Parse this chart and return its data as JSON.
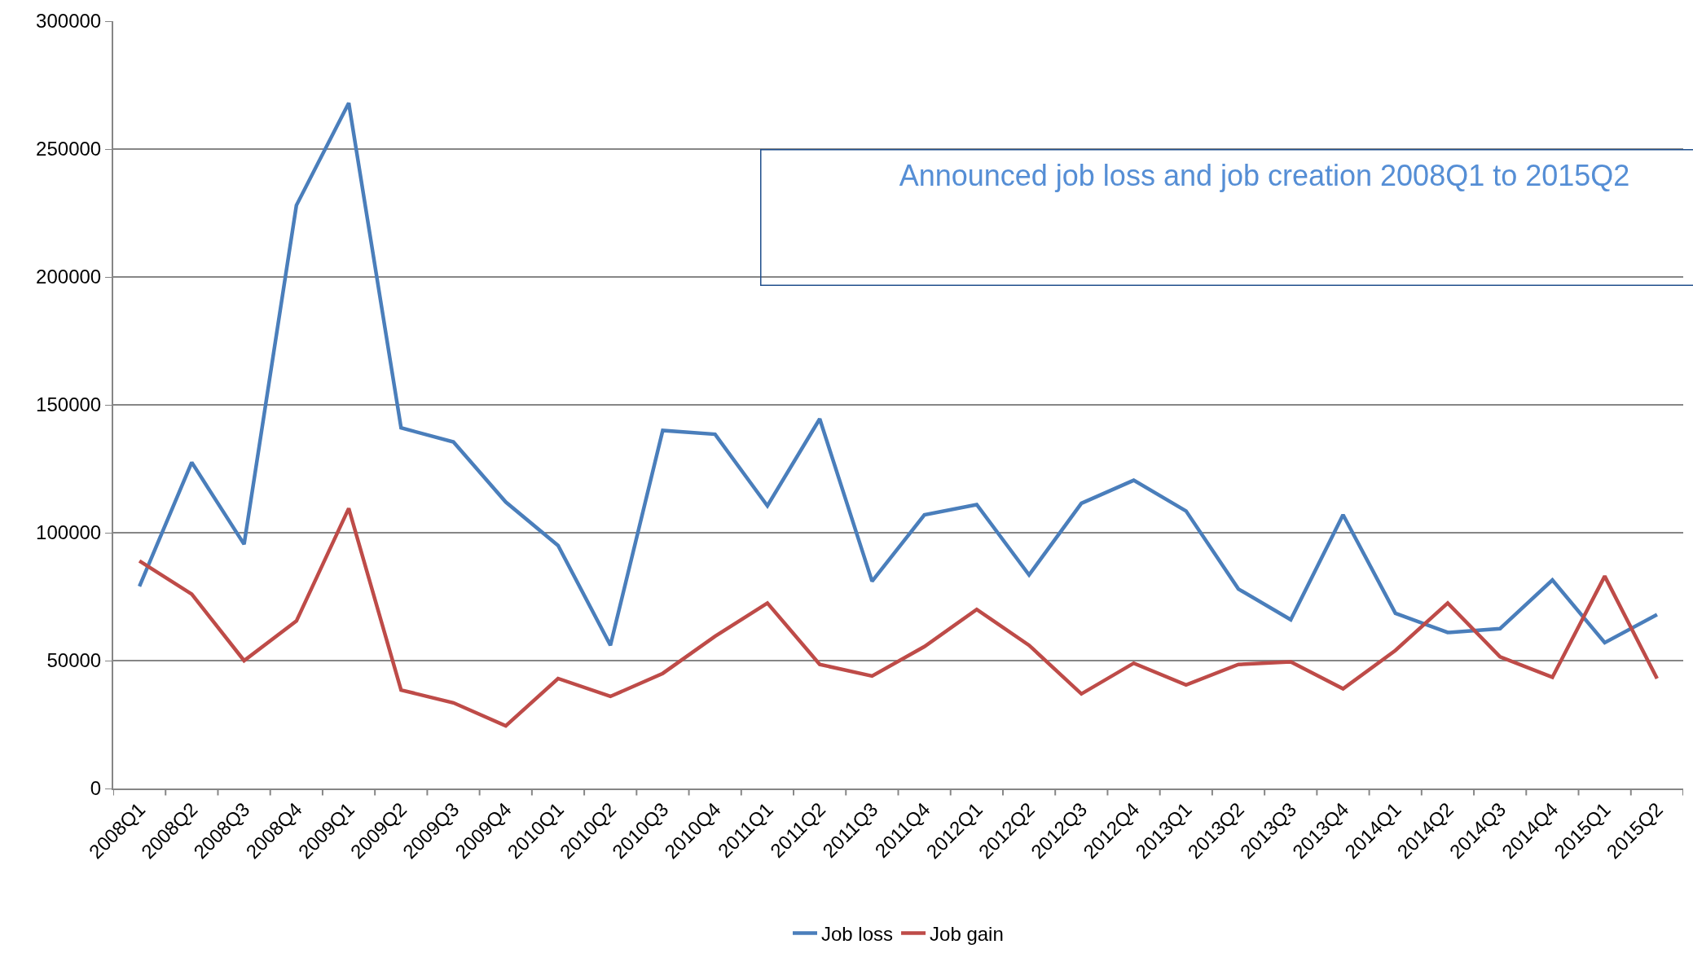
{
  "chart_data": {
    "type": "line",
    "title": "Announced job loss and job creation 2008Q1 to 2015Q2",
    "categories": [
      "2008Q1",
      "2008Q2",
      "2008Q3",
      "2008Q4",
      "2009Q1",
      "2009Q2",
      "2009Q3",
      "2009Q4",
      "2010Q1",
      "2010Q2",
      "2010Q3",
      "2010Q4",
      "2011Q1",
      "2011Q2",
      "2011Q3",
      "2011Q4",
      "2012Q1",
      "2012Q2",
      "2012Q3",
      "2012Q4",
      "2013Q1",
      "2013Q2",
      "2013Q3",
      "2013Q4",
      "2014Q1",
      "2014Q2",
      "2014Q3",
      "2014Q4",
      "2015Q1",
      "2015Q2"
    ],
    "series": [
      {
        "name": "Job loss",
        "color": "#4a7ebb",
        "values": [
          79000,
          127500,
          95500,
          228000,
          268000,
          141000,
          135500,
          112000,
          95000,
          56000,
          140000,
          138500,
          110500,
          144500,
          81000,
          107000,
          111000,
          83500,
          111500,
          120500,
          108500,
          78000,
          66000,
          107000,
          68500,
          61000,
          62500,
          81500,
          57000,
          68000
        ]
      },
      {
        "name": "Job gain",
        "color": "#be4b48",
        "values": [
          89000,
          76000,
          50000,
          65500,
          109500,
          38500,
          33500,
          24500,
          43000,
          36000,
          45000,
          59500,
          72500,
          48500,
          44000,
          55500,
          70000,
          56000,
          37000,
          49000,
          40500,
          48500,
          49500,
          39000,
          54000,
          72500,
          51500,
          43500,
          83000,
          43000
        ]
      }
    ],
    "ylim": [
      0,
      300000
    ],
    "yticks": [
      0,
      50000,
      100000,
      150000,
      200000,
      250000,
      300000
    ],
    "grid": "y",
    "legend": "bottom",
    "marker": "none",
    "line_style": "solid"
  }
}
